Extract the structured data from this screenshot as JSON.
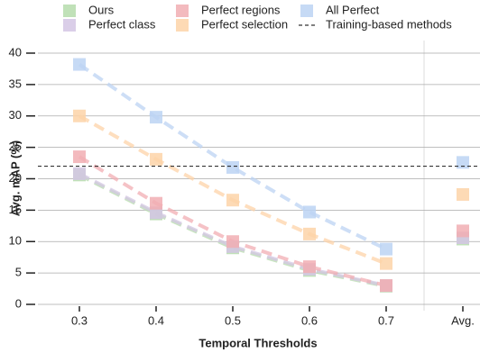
{
  "chart_data": {
    "type": "line",
    "x_label": "Temporal Thresholds",
    "y_label": "Avg. mAP (%)",
    "categories": [
      "0.3",
      "0.4",
      "0.5",
      "0.6",
      "0.7"
    ],
    "avg_label": "Avg.",
    "series": [
      {
        "name": "Ours",
        "color": "#b5dcab",
        "values": [
          20.6,
          14.4,
          9.0,
          5.4,
          2.9
        ],
        "avg": 10.4
      },
      {
        "name": "Perfect class",
        "color": "#d4c6e4",
        "values": [
          20.8,
          14.6,
          9.2,
          5.6,
          3.0
        ],
        "avg": 10.6
      },
      {
        "name": "Perfect regions",
        "color": "#f1aeb3",
        "values": [
          23.5,
          16.1,
          10.0,
          6.0,
          3.0
        ],
        "avg": 11.7
      },
      {
        "name": "Perfect selection",
        "color": "#fdd3a8",
        "values": [
          30.0,
          23.1,
          16.6,
          11.2,
          6.5
        ],
        "avg": 17.5
      },
      {
        "name": "All Perfect",
        "color": "#bcd3f3",
        "values": [
          38.2,
          29.8,
          21.8,
          14.7,
          8.8
        ],
        "avg": 22.6
      }
    ],
    "reference": {
      "name": "Training-based methods",
      "value": 22.0,
      "color": "#333333"
    },
    "ylim": [
      0,
      40
    ],
    "yticks": [
      0,
      5,
      10,
      15,
      20,
      25,
      30,
      35,
      40
    ],
    "grid": true
  }
}
